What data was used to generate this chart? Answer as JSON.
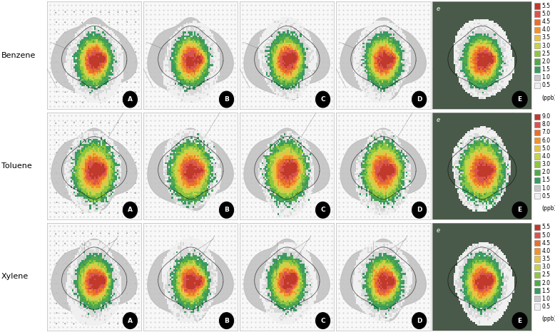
{
  "rows": [
    "Benzene",
    "Toluene",
    "Xylene"
  ],
  "cols": [
    "A",
    "B",
    "C",
    "D",
    "E"
  ],
  "benzene_legend": {
    "values": [
      "5.5",
      "5.0",
      "4.5",
      "4.0",
      "3.5",
      "3.0",
      "2.5",
      "2.0",
      "1.5",
      "1.0",
      "0.5"
    ],
    "colors": [
      "#c0392b",
      "#d9534f",
      "#e8702a",
      "#f0942a",
      "#e8c244",
      "#c8d44a",
      "#8ec63f",
      "#52a84a",
      "#3a9a60",
      "#c8c8c8",
      "#f0f0f0"
    ],
    "unit": "(ppb)"
  },
  "toluene_legend": {
    "values": [
      "9.0",
      "8.0",
      "7.0",
      "6.0",
      "5.0",
      "4.0",
      "3.0",
      "2.0",
      "1.5",
      "1.0",
      "0.5"
    ],
    "colors": [
      "#c0392b",
      "#d9534f",
      "#e8702a",
      "#f0942a",
      "#e8c244",
      "#c8d44a",
      "#8ec63f",
      "#52a84a",
      "#3a9a60",
      "#c8c8c8",
      "#f0f0f0"
    ],
    "unit": "(ppb)"
  },
  "xylene_legend": {
    "values": [
      "5.5",
      "5.0",
      "4.5",
      "4.0",
      "3.5",
      "3.0",
      "2.5",
      "2.0",
      "1.5",
      "1.0",
      "0.5"
    ],
    "colors": [
      "#c0392b",
      "#d9534f",
      "#e8702a",
      "#f0942a",
      "#e8c244",
      "#c8d44a",
      "#8ec63f",
      "#52a84a",
      "#3a9a60",
      "#c8c8c8",
      "#f0f0f0"
    ],
    "unit": "(ppb)"
  },
  "background_color": "#ffffff",
  "figsize": [
    7.78,
    4.66
  ],
  "dpi": 100
}
